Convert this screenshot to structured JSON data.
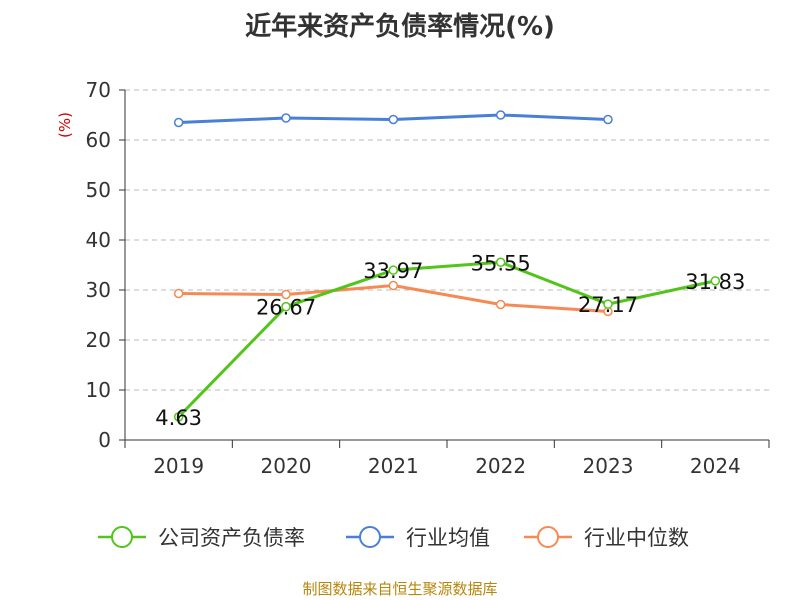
{
  "chart_data": {
    "type": "line",
    "title": "近年来资产负债率情况(%)",
    "ylabel": "(%)",
    "xlabel": "",
    "categories": [
      "2019",
      "2020",
      "2021",
      "2022",
      "2023",
      "2024"
    ],
    "ylim": [
      0,
      70
    ],
    "yticks": [
      "0",
      "10",
      "20",
      "30",
      "40",
      "50",
      "60",
      "70"
    ],
    "grid": true,
    "legend_position": "bottom",
    "series": [
      {
        "name": "公司资产负债率",
        "color": "#52c41a",
        "values": [
          4.63,
          26.67,
          33.97,
          35.55,
          27.17,
          31.83
        ],
        "labels": [
          "4.63",
          "26.67",
          "33.97",
          "35.55",
          "27.17",
          "31.83"
        ]
      },
      {
        "name": "行业均值",
        "color": "#4a7fd8",
        "values": [
          63.5,
          64.4,
          64.1,
          65.0,
          64.1,
          null
        ]
      },
      {
        "name": "行业中位数",
        "color": "#f58a55",
        "values": [
          29.3,
          29.1,
          30.9,
          27.1,
          25.7,
          null
        ]
      }
    ]
  },
  "footer": "制图数据来自恒生聚源数据库"
}
